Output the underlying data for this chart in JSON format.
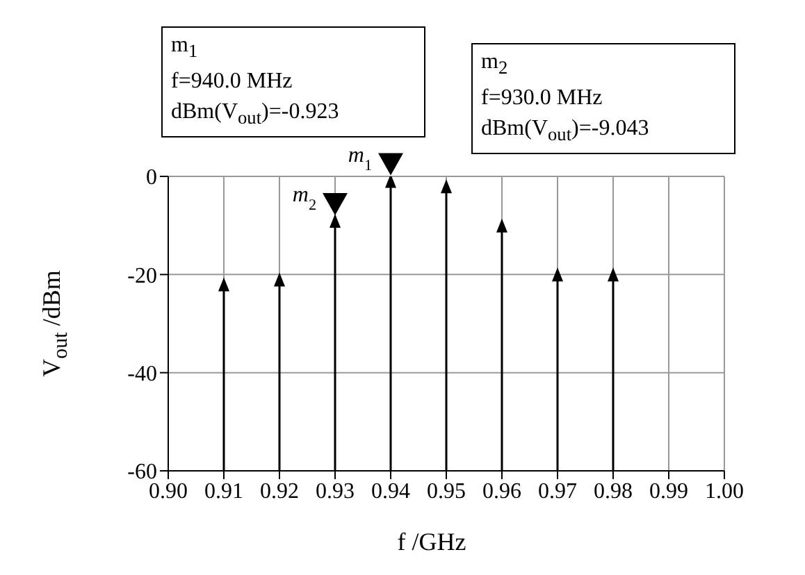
{
  "chart_data": {
    "type": "lollipop",
    "xlabel": "f /GHz",
    "ylabel": "V$_{out}$ /dBm",
    "x": [
      0.91,
      0.92,
      0.93,
      0.94,
      0.95,
      0.96,
      0.97,
      0.98
    ],
    "values": [
      -22,
      -21,
      -9.043,
      -0.923,
      -2,
      -10,
      -20,
      -20
    ],
    "color": "#000000",
    "marker": "triangle",
    "grid": true,
    "xlim": [
      0.9,
      1.0
    ],
    "xticks": [
      {
        "value": 0.9,
        "label": "0.90"
      },
      0.91,
      0.92,
      0.93,
      0.94,
      0.95,
      0.96,
      0.97,
      0.98,
      0.99,
      {
        "value": 1.0,
        "label": "1.00"
      }
    ],
    "ylim": [
      -60,
      0
    ],
    "yticks": [
      -60,
      -40,
      -20,
      0
    ],
    "annotations": [
      {
        "text": "m$_{1}$",
        "x": 0.94,
        "y": -0.923
      },
      {
        "text": "m$_{2}$",
        "x": 0.93,
        "y": -9.043
      },
      "m$_{1}$\nf=940.0 MHz\ndBm(V$_{out}$)=-0.923",
      "m$_{2}$\nf=930.0 MHz\ndBm(V$_{out}$)=-9.043"
    ]
  }
}
